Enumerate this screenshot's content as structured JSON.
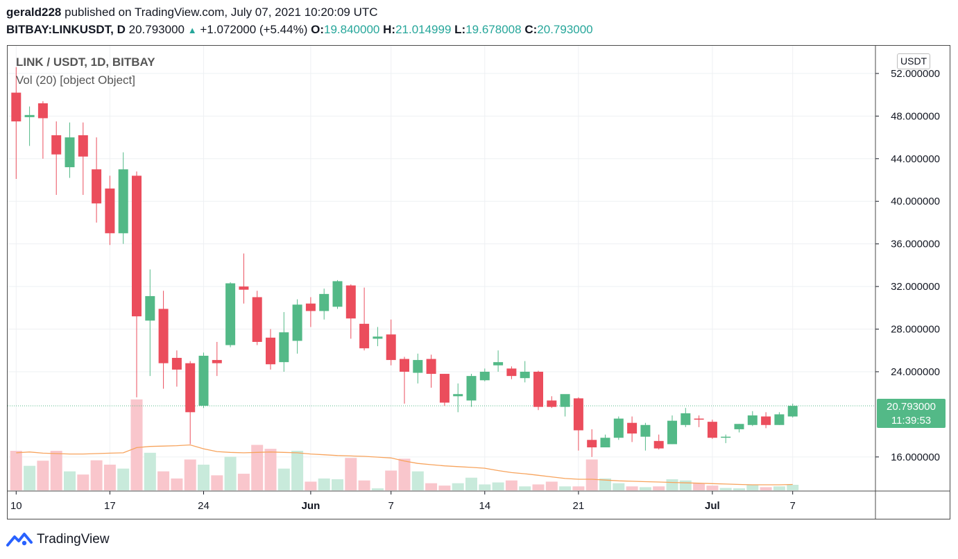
{
  "header": {
    "author": "gerald228",
    "published_text": "published on TradingView.com, July 07, 2021 10:20:09 UTC",
    "symbol": "BITBAY:LINKUSDT, D",
    "last": "20.793000",
    "arrow": "▲",
    "change": "+1.072000 (+5.44%)",
    "o_label": "O:",
    "o": "19.840000",
    "h_label": "H:",
    "h": "21.014999",
    "l_label": "L:",
    "l": "19.678008",
    "c_label": "C:",
    "c": "20.793000"
  },
  "legend": {
    "title": "LINK / USDT, 1D, BITBAY",
    "volume": "Vol (20) [object Object]"
  },
  "price_axis": {
    "unit": "USDT"
  },
  "price_tag": {
    "price": "20.793000",
    "countdown": "11:39:53"
  },
  "footer": {
    "brand": "TradingView"
  },
  "colors": {
    "up": "#53b987",
    "down": "#eb4d5c",
    "vol_up": "#c8eadb",
    "vol_down": "#f9c6cc",
    "ma": "#f7a35c",
    "grid": "#eef0f3"
  },
  "chart_data": {
    "type": "candlestick",
    "price_range": [
      12.8,
      54.6
    ],
    "y_ticks": [
      "52.000000",
      "48.000000",
      "44.000000",
      "40.000000",
      "36.000000",
      "32.000000",
      "28.000000",
      "24.000000",
      "16.000000"
    ],
    "x_labels": [
      {
        "i": 0,
        "label": "10"
      },
      {
        "i": 7,
        "label": "17"
      },
      {
        "i": 14,
        "label": "24"
      },
      {
        "i": 22,
        "label": "Jun"
      },
      {
        "i": 28,
        "label": "7"
      },
      {
        "i": 35,
        "label": "14"
      },
      {
        "i": 42,
        "label": "21"
      },
      {
        "i": 52,
        "label": "Jul"
      },
      {
        "i": 58,
        "label": "7"
      }
    ],
    "candles": [
      {
        "o": 50.2,
        "h": 52.6,
        "l": 42.1,
        "c": 47.5,
        "v": 1.0
      },
      {
        "o": 47.9,
        "h": 48.9,
        "l": 45.2,
        "c": 48.1,
        "v": 0.62
      },
      {
        "o": 49.2,
        "h": 49.4,
        "l": 44.0,
        "c": 47.8,
        "v": 0.75
      },
      {
        "o": 46.2,
        "h": 47.5,
        "l": 40.6,
        "c": 44.4,
        "v": 1.0
      },
      {
        "o": 43.2,
        "h": 47.4,
        "l": 42.2,
        "c": 46.0,
        "v": 0.48
      },
      {
        "o": 46.2,
        "h": 47.4,
        "l": 40.6,
        "c": 44.2,
        "v": 0.4
      },
      {
        "o": 43.0,
        "h": 46.0,
        "l": 38.0,
        "c": 39.8,
        "v": 0.76
      },
      {
        "o": 41.2,
        "h": 42.4,
        "l": 35.9,
        "c": 37.0,
        "v": 0.65
      },
      {
        "o": 37.0,
        "h": 44.6,
        "l": 36.0,
        "c": 43.0,
        "v": 0.55
      },
      {
        "o": 42.4,
        "h": 42.8,
        "l": 21.6,
        "c": 29.2,
        "v": 2.3
      },
      {
        "o": 28.8,
        "h": 33.6,
        "l": 23.6,
        "c": 31.1,
        "v": 0.95
      },
      {
        "o": 29.9,
        "h": 31.6,
        "l": 22.4,
        "c": 24.8,
        "v": 0.48
      },
      {
        "o": 25.3,
        "h": 26.0,
        "l": 22.6,
        "c": 24.2,
        "v": 0.3
      },
      {
        "o": 24.8,
        "h": 25.0,
        "l": 17.2,
        "c": 20.2,
        "v": 0.78
      },
      {
        "o": 20.8,
        "h": 25.8,
        "l": 20.6,
        "c": 25.5,
        "v": 0.65
      },
      {
        "o": 25.1,
        "h": 26.8,
        "l": 23.6,
        "c": 24.8,
        "v": 0.38
      },
      {
        "o": 26.5,
        "h": 32.4,
        "l": 26.3,
        "c": 32.3,
        "v": 0.85
      },
      {
        "o": 32.0,
        "h": 35.1,
        "l": 30.4,
        "c": 31.7,
        "v": 0.42
      },
      {
        "o": 31.0,
        "h": 31.6,
        "l": 26.5,
        "c": 26.8,
        "v": 1.15
      },
      {
        "o": 27.2,
        "h": 28.0,
        "l": 24.2,
        "c": 24.7,
        "v": 1.05
      },
      {
        "o": 24.9,
        "h": 29.6,
        "l": 24.0,
        "c": 27.7,
        "v": 0.55
      },
      {
        "o": 26.9,
        "h": 30.8,
        "l": 25.7,
        "c": 30.3,
        "v": 1.0
      },
      {
        "o": 30.4,
        "h": 31.0,
        "l": 28.2,
        "c": 29.7,
        "v": 0.22
      },
      {
        "o": 29.7,
        "h": 31.8,
        "l": 28.9,
        "c": 31.3,
        "v": 0.3
      },
      {
        "o": 30.1,
        "h": 32.6,
        "l": 29.9,
        "c": 32.5,
        "v": 0.28
      },
      {
        "o": 32.1,
        "h": 32.2,
        "l": 27.1,
        "c": 29.0,
        "v": 0.82
      },
      {
        "o": 28.5,
        "h": 31.9,
        "l": 26.0,
        "c": 26.2,
        "v": 0.25
      },
      {
        "o": 27.1,
        "h": 28.2,
        "l": 26.4,
        "c": 27.3,
        "v": 0.05
      },
      {
        "o": 27.5,
        "h": 28.9,
        "l": 24.6,
        "c": 25.1,
        "v": 0.5
      },
      {
        "o": 25.2,
        "h": 25.4,
        "l": 21.0,
        "c": 24.0,
        "v": 0.8
      },
      {
        "o": 23.9,
        "h": 25.7,
        "l": 22.9,
        "c": 25.1,
        "v": 0.48
      },
      {
        "o": 25.2,
        "h": 25.6,
        "l": 22.5,
        "c": 23.8,
        "v": 0.18
      },
      {
        "o": 23.8,
        "h": 23.8,
        "l": 20.8,
        "c": 21.1,
        "v": 0.12
      },
      {
        "o": 21.7,
        "h": 22.9,
        "l": 20.2,
        "c": 21.9,
        "v": 0.18
      },
      {
        "o": 21.3,
        "h": 23.8,
        "l": 20.7,
        "c": 23.6,
        "v": 0.32
      },
      {
        "o": 23.2,
        "h": 24.3,
        "l": 23.1,
        "c": 24.0,
        "v": 0.15
      },
      {
        "o": 24.6,
        "h": 26.0,
        "l": 24.0,
        "c": 24.9,
        "v": 0.2
      },
      {
        "o": 24.3,
        "h": 24.5,
        "l": 23.3,
        "c": 23.6,
        "v": 0.25
      },
      {
        "o": 23.4,
        "h": 25.0,
        "l": 23.0,
        "c": 24.0,
        "v": 0.1
      },
      {
        "o": 24.0,
        "h": 24.1,
        "l": 20.4,
        "c": 20.7,
        "v": 0.15
      },
      {
        "o": 21.3,
        "h": 21.7,
        "l": 20.6,
        "c": 20.7,
        "v": 0.22
      },
      {
        "o": 20.7,
        "h": 21.7,
        "l": 19.8,
        "c": 21.9,
        "v": 0.1
      },
      {
        "o": 21.5,
        "h": 21.6,
        "l": 16.6,
        "c": 18.5,
        "v": 0.1
      },
      {
        "o": 17.6,
        "h": 18.6,
        "l": 16.0,
        "c": 16.9,
        "v": 0.78
      },
      {
        "o": 16.9,
        "h": 18.1,
        "l": 16.9,
        "c": 17.8,
        "v": 0.3
      },
      {
        "o": 17.8,
        "h": 19.8,
        "l": 17.6,
        "c": 19.6,
        "v": 0.18
      },
      {
        "o": 19.2,
        "h": 19.8,
        "l": 17.4,
        "c": 18.2,
        "v": 0.1
      },
      {
        "o": 17.9,
        "h": 19.2,
        "l": 16.6,
        "c": 19.0,
        "v": 0.08
      },
      {
        "o": 17.5,
        "h": 18.1,
        "l": 16.7,
        "c": 16.8,
        "v": 0.1
      },
      {
        "o": 17.2,
        "h": 19.9,
        "l": 17.2,
        "c": 19.4,
        "v": 0.28
      },
      {
        "o": 19.0,
        "h": 20.6,
        "l": 18.8,
        "c": 20.1,
        "v": 0.25
      },
      {
        "o": 19.6,
        "h": 19.9,
        "l": 18.8,
        "c": 19.5,
        "v": 0.18
      },
      {
        "o": 19.3,
        "h": 19.5,
        "l": 17.7,
        "c": 17.8,
        "v": 0.12
      },
      {
        "o": 17.9,
        "h": 18.1,
        "l": 17.3,
        "c": 17.9,
        "v": 0.06
      },
      {
        "o": 18.6,
        "h": 19.1,
        "l": 18.3,
        "c": 19.1,
        "v": 0.05
      },
      {
        "o": 19.0,
        "h": 20.3,
        "l": 18.9,
        "c": 19.9,
        "v": 0.14
      },
      {
        "o": 19.8,
        "h": 20.2,
        "l": 18.7,
        "c": 19.0,
        "v": 0.08
      },
      {
        "o": 19.0,
        "h": 20.2,
        "l": 19.0,
        "c": 20.0,
        "v": 0.1
      },
      {
        "o": 19.8,
        "h": 21.0,
        "l": 19.7,
        "c": 20.8,
        "v": 0.14
      }
    ],
    "volume_ma": [
      0.95,
      0.97,
      0.94,
      0.93,
      0.92,
      0.92,
      0.93,
      0.94,
      0.95,
      1.08,
      1.11,
      1.12,
      1.13,
      1.15,
      1.05,
      0.98,
      0.96,
      0.95,
      0.96,
      0.97,
      0.96,
      0.95,
      0.92,
      0.9,
      0.88,
      0.87,
      0.86,
      0.84,
      0.82,
      0.74,
      0.68,
      0.65,
      0.62,
      0.6,
      0.58,
      0.56,
      0.5,
      0.45,
      0.42,
      0.38,
      0.34,
      0.3,
      0.28,
      0.28,
      0.26,
      0.24,
      0.23,
      0.22,
      0.21,
      0.2,
      0.19,
      0.18,
      0.17,
      0.16,
      0.15,
      0.14,
      0.14,
      0.14,
      0.15
    ]
  }
}
